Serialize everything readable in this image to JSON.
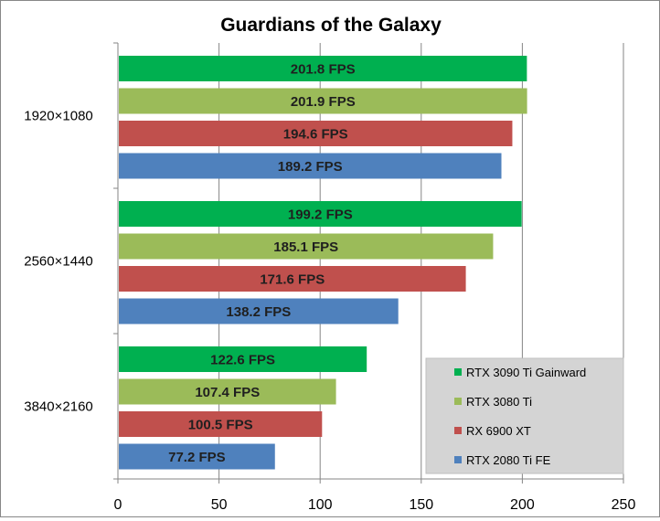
{
  "chart_data": {
    "type": "bar",
    "orientation": "horizontal",
    "title": "Guardians of the Galaxy",
    "xlabel": "",
    "ylabel": "",
    "xlim": [
      0,
      250
    ],
    "x_ticks": [
      0,
      50,
      100,
      150,
      200,
      250
    ],
    "grid": true,
    "legend_position": "bottom-right",
    "categories": [
      "1920×1080",
      "2560×1440",
      "3840×2160"
    ],
    "series": [
      {
        "name": "RTX 3090 Ti Gainward",
        "color": "#00b050",
        "values": [
          201.8,
          199.2,
          122.6
        ],
        "labels": [
          "201.8 FPS",
          "199.2 FPS",
          "122.6 FPS"
        ]
      },
      {
        "name": "RTX 3080 Ti",
        "color": "#9bbb59",
        "values": [
          201.9,
          185.1,
          107.4
        ],
        "labels": [
          "201.9 FPS",
          "185.1 FPS",
          "107.4 FPS"
        ]
      },
      {
        "name": "RX 6900 XT",
        "color": "#c0504d",
        "values": [
          194.6,
          171.6,
          100.5
        ],
        "labels": [
          "194.6 FPS",
          "171.6 FPS",
          "100.5 FPS"
        ]
      },
      {
        "name": "RTX 2080 Ti FE",
        "color": "#4f81bd",
        "values": [
          189.2,
          138.2,
          77.2
        ],
        "labels": [
          "189.2 FPS",
          "138.2 FPS",
          "77.2 FPS"
        ]
      }
    ]
  }
}
